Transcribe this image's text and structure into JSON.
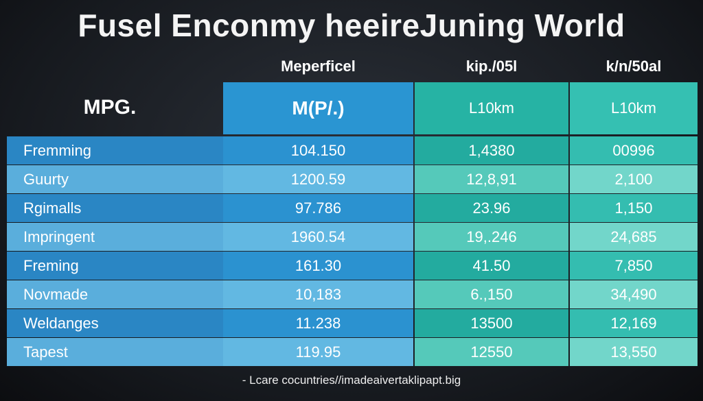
{
  "title": "Fusel Enconmy heeireJuning World",
  "header": {
    "top": [
      "Meperficel",
      "kip./05l",
      "k/n/50al"
    ],
    "label": "MPG.",
    "units": [
      "M(P/.)",
      "L10km",
      "L10km"
    ]
  },
  "table": {
    "rows": [
      [
        "Fremming",
        "104.150",
        "1,4380",
        "00996"
      ],
      [
        "Guurty",
        "1200.59",
        "12,8,91",
        "2,100"
      ],
      [
        "Rgimalls",
        "97.786",
        "23.96",
        "1,150"
      ],
      [
        "Impringent",
        "1960.54",
        "19,.246",
        "24,685"
      ],
      [
        "Freming",
        "161.30",
        "41.50",
        "7,850"
      ],
      [
        "Novmade",
        "10,183",
        "6.,150",
        "34,490"
      ],
      [
        "Weldanges",
        "11.238",
        "13500",
        "12,169"
      ],
      [
        "Tapest",
        "119.95",
        "12550",
        "13,550"
      ]
    ]
  },
  "footer": "- Lcare cocuntries//imadeaivertaklipapt.big"
}
